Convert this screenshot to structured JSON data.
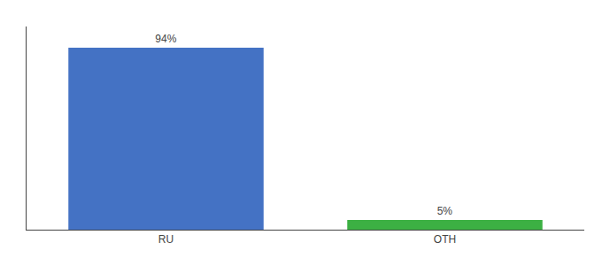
{
  "chart_data": {
    "type": "bar",
    "categories": [
      "RU",
      "OTH"
    ],
    "values": [
      94,
      5
    ],
    "value_labels": [
      "94%",
      "5%"
    ],
    "data_labels": true,
    "colors": [
      "#4472c4",
      "#3cb043"
    ],
    "ylim": [
      0,
      105
    ],
    "tick_labels": "x",
    "grid": false
  }
}
